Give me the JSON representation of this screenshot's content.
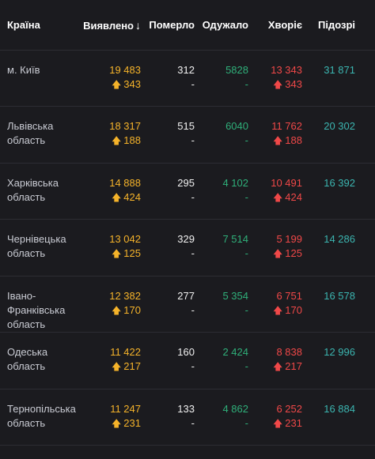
{
  "headers": {
    "country": "Країна",
    "found": "Виявлено",
    "sort_arrow": "↓",
    "dead": "Померло",
    "recovered": "Одужало",
    "sick": "Хворіє",
    "suspected": "Підозрі"
  },
  "rows": [
    {
      "name": "м. Київ",
      "found": "19 483",
      "found_delta": "343",
      "dead": "312",
      "dead_delta": "-",
      "recovered": "5828",
      "recovered_delta": "-",
      "sick": "13 343",
      "sick_delta": "343",
      "suspected": "31 871"
    },
    {
      "name": "Львівська область",
      "found": "18 317",
      "found_delta": "188",
      "dead": "515",
      "dead_delta": "-",
      "recovered": "6040",
      "recovered_delta": "-",
      "sick": "11 762",
      "sick_delta": "188",
      "suspected": "20 302"
    },
    {
      "name": "Харківська область",
      "found": "14 888",
      "found_delta": "424",
      "dead": "295",
      "dead_delta": "-",
      "recovered": "4 102",
      "recovered_delta": "-",
      "sick": "10 491",
      "sick_delta": "424",
      "suspected": "16 392"
    },
    {
      "name": "Чернівецька область",
      "found": "13 042",
      "found_delta": "125",
      "dead": "329",
      "dead_delta": "-",
      "recovered": "7 514",
      "recovered_delta": "-",
      "sick": "5 199",
      "sick_delta": "125",
      "suspected": "14 286"
    },
    {
      "name": "Івано-Франківська область",
      "found": "12 382",
      "found_delta": "170",
      "dead": "277",
      "dead_delta": "-",
      "recovered": "5 354",
      "recovered_delta": "-",
      "sick": "6 751",
      "sick_delta": "170",
      "suspected": "16 578"
    },
    {
      "name": "Одеська область",
      "found": "11 422",
      "found_delta": "217",
      "dead": "160",
      "dead_delta": "-",
      "recovered": "2 424",
      "recovered_delta": "-",
      "sick": "8 838",
      "sick_delta": "217",
      "suspected": "12 996"
    },
    {
      "name": "Тернопільська область",
      "found": "11 247",
      "found_delta": "231",
      "dead": "133",
      "dead_delta": "-",
      "recovered": "4 862",
      "recovered_delta": "-",
      "sick": "6 252",
      "sick_delta": "231",
      "suspected": "16 884"
    }
  ],
  "colors": {
    "background": "#1b1b1f",
    "found": "#f5b32a",
    "recovered": "#2fb07a",
    "sick": "#f04848",
    "suspected": "#3bb5b0"
  },
  "icons": {
    "up": "arrow-up-icon",
    "sort": "sort-down-icon"
  }
}
